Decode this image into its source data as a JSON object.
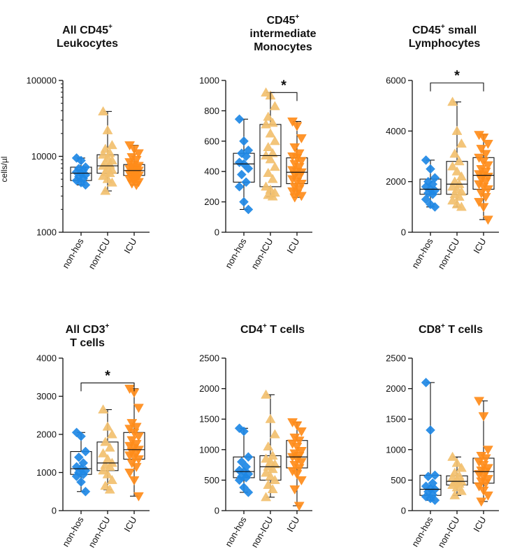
{
  "figure": {
    "y_label": "cells/µl"
  },
  "colors": {
    "nonhos": "#1E88E5",
    "nonicu": "#F2C06F",
    "icu": "#FF8C1A",
    "axis": "#111111"
  },
  "chart_data": [
    {
      "type": "box",
      "title": {
        "pre": "All CD45",
        "sup": "+",
        "post": "",
        "line2": "Leukocytes"
      },
      "scale": "log",
      "ylim": [
        1000,
        100000
      ],
      "yticks": [
        1000,
        10000,
        100000
      ],
      "ytick_labels": [
        "1000",
        "10000",
        "100000"
      ],
      "show_ylabel": true,
      "categories": [
        "non-hos",
        "non-ICU",
        "ICU"
      ],
      "groups": [
        {
          "name": "non-hos",
          "marker": "diamond",
          "q1": 4800,
          "median": 6000,
          "q3": 7200,
          "min": 4200,
          "max": 9500,
          "points": [
            9500,
            8800,
            7200,
            6900,
            6600,
            6200,
            6000,
            5700,
            5400,
            5100,
            4800,
            4500,
            4200
          ]
        },
        {
          "name": "non-ICU",
          "marker": "triangle-up",
          "q1": 6000,
          "median": 7500,
          "q3": 10500,
          "min": 3500,
          "max": 39000,
          "points": [
            39000,
            22000,
            14000,
            12500,
            11000,
            10500,
            9500,
            8800,
            8200,
            7800,
            7500,
            7000,
            6600,
            6200,
            6000,
            5500,
            5000,
            4500,
            3500
          ]
        },
        {
          "name": "ICU",
          "marker": "triangle-down",
          "q1": 5600,
          "median": 6500,
          "q3": 7800,
          "min": 4200,
          "max": 14000,
          "points": [
            14000,
            12500,
            11000,
            9800,
            9000,
            8400,
            7800,
            7500,
            7200,
            7000,
            6800,
            6600,
            6500,
            6300,
            6100,
            5900,
            5700,
            5600,
            5400,
            5200,
            5000,
            4800,
            4600,
            4400,
            4200
          ]
        }
      ],
      "significance": null
    },
    {
      "type": "box",
      "title": {
        "pre": "CD45",
        "sup": "+",
        "post": "",
        "line2": "intermediate",
        "line3": "Monocytes"
      },
      "scale": "linear",
      "ylim": [
        0,
        1000
      ],
      "yticks": [
        0,
        200,
        400,
        600,
        800,
        1000
      ],
      "ytick_labels": [
        "0",
        "200",
        "400",
        "600",
        "800",
        "1000"
      ],
      "show_ylabel": false,
      "categories": [
        "non-hos",
        "non-ICU",
        "ICU"
      ],
      "groups": [
        {
          "name": "non-hos",
          "marker": "diamond",
          "q1": 330,
          "median": 450,
          "q3": 520,
          "min": 150,
          "max": 745,
          "points": [
            745,
            600,
            540,
            520,
            500,
            460,
            450,
            420,
            380,
            330,
            300,
            200,
            150
          ]
        },
        {
          "name": "non-ICU",
          "marker": "triangle-up",
          "q1": 300,
          "median": 505,
          "q3": 710,
          "min": 235,
          "max": 920,
          "points": [
            920,
            900,
            830,
            760,
            720,
            710,
            650,
            600,
            560,
            520,
            505,
            480,
            430,
            390,
            350,
            300,
            280,
            260,
            245,
            235
          ]
        },
        {
          "name": "ICU",
          "marker": "triangle-down",
          "q1": 320,
          "median": 395,
          "q3": 490,
          "min": 230,
          "max": 730,
          "points": [
            730,
            700,
            620,
            560,
            520,
            500,
            490,
            470,
            450,
            430,
            410,
            400,
            395,
            380,
            365,
            350,
            335,
            320,
            300,
            285,
            270,
            255,
            240,
            230
          ]
        }
      ],
      "significance": {
        "from": 1,
        "to": 2,
        "level": 920,
        "label": "*"
      }
    },
    {
      "type": "box",
      "title": {
        "pre": "CD45",
        "sup": "+",
        "post": " small",
        "line2": "Lymphocytes"
      },
      "scale": "linear",
      "ylim": [
        0,
        6000
      ],
      "yticks": [
        0,
        2000,
        4000,
        6000
      ],
      "ytick_labels": [
        "0",
        "2000",
        "4000",
        "6000"
      ],
      "show_ylabel": false,
      "categories": [
        "non-hos",
        "non-ICU",
        "ICU"
      ],
      "groups": [
        {
          "name": "non-hos",
          "marker": "diamond",
          "q1": 1500,
          "median": 1700,
          "q3": 2100,
          "min": 1000,
          "max": 2850,
          "points": [
            2850,
            2500,
            2150,
            2000,
            1900,
            1800,
            1700,
            1650,
            1550,
            1500,
            1300,
            1100,
            1000
          ]
        },
        {
          "name": "non-ICU",
          "marker": "triangle-up",
          "q1": 1500,
          "median": 1900,
          "q3": 2800,
          "min": 1000,
          "max": 5150,
          "points": [
            5150,
            4000,
            3500,
            3100,
            2800,
            2600,
            2400,
            2200,
            2000,
            1900,
            1800,
            1700,
            1600,
            1500,
            1400,
            1250,
            1100,
            1000
          ]
        },
        {
          "name": "ICU",
          "marker": "triangle-down",
          "q1": 1700,
          "median": 2250,
          "q3": 2950,
          "min": 500,
          "max": 3850,
          "points": [
            3850,
            3750,
            3500,
            3300,
            3100,
            2950,
            2800,
            2650,
            2500,
            2400,
            2300,
            2250,
            2200,
            2100,
            2000,
            1900,
            1800,
            1700,
            1550,
            1400,
            1200,
            1000,
            500
          ]
        }
      ],
      "significance": {
        "from": 0,
        "to": 2,
        "level": 5900,
        "label": "*"
      }
    },
    {
      "type": "box",
      "title": {
        "pre": "All CD3",
        "sup": "+",
        "post": "",
        "line2": "T cells"
      },
      "scale": "linear",
      "ylim": [
        0,
        4000
      ],
      "yticks": [
        0,
        1000,
        2000,
        3000,
        4000
      ],
      "ytick_labels": [
        "0",
        "1000",
        "2000",
        "3000",
        "4000"
      ],
      "show_ylabel": false,
      "categories": [
        "non-hos",
        "non-ICU",
        "ICU"
      ],
      "groups": [
        {
          "name": "non-hos",
          "marker": "diamond",
          "q1": 950,
          "median": 1100,
          "q3": 1550,
          "min": 500,
          "max": 2050,
          "points": [
            2050,
            1950,
            1550,
            1400,
            1250,
            1150,
            1100,
            1050,
            1000,
            950,
            900,
            750,
            500
          ]
        },
        {
          "name": "non-ICU",
          "marker": "triangle-up",
          "q1": 1050,
          "median": 1250,
          "q3": 1800,
          "min": 550,
          "max": 2650,
          "points": [
            2650,
            2200,
            2000,
            1800,
            1650,
            1500,
            1350,
            1250,
            1200,
            1150,
            1050,
            950,
            800,
            650,
            550
          ]
        },
        {
          "name": "ICU",
          "marker": "triangle-down",
          "q1": 1350,
          "median": 1600,
          "q3": 2050,
          "min": 380,
          "max": 3200,
          "points": [
            3200,
            3100,
            2700,
            2300,
            2200,
            2150,
            2050,
            1950,
            1850,
            1750,
            1700,
            1650,
            1600,
            1550,
            1500,
            1450,
            1400,
            1350,
            1250,
            1150,
            1000,
            800,
            380
          ]
        }
      ],
      "significance": {
        "from": 0,
        "to": 2,
        "level": 3350,
        "label": "*"
      }
    },
    {
      "type": "box",
      "title": {
        "pre": "CD4",
        "sup": "+",
        "post": " T cells"
      },
      "scale": "linear",
      "ylim": [
        0,
        2500
      ],
      "yticks": [
        0,
        500,
        1000,
        1500,
        2000,
        2500
      ],
      "ytick_labels": [
        "0",
        "500",
        "1000",
        "1500",
        "2000",
        "2500"
      ],
      "show_ylabel": false,
      "categories": [
        "non-hos",
        "non-ICU",
        "ICU"
      ],
      "groups": [
        {
          "name": "non-hos",
          "marker": "diamond",
          "q1": 540,
          "median": 640,
          "q3": 880,
          "min": 300,
          "max": 1350,
          "points": [
            1350,
            1300,
            880,
            800,
            720,
            660,
            640,
            600,
            560,
            540,
            500,
            380,
            300
          ]
        },
        {
          "name": "non-ICU",
          "marker": "triangle-up",
          "q1": 500,
          "median": 720,
          "q3": 900,
          "min": 220,
          "max": 1900,
          "points": [
            1900,
            1500,
            1250,
            1050,
            900,
            850,
            800,
            760,
            720,
            680,
            620,
            560,
            500,
            420,
            350,
            220
          ]
        },
        {
          "name": "ICU",
          "marker": "triangle-down",
          "q1": 700,
          "median": 880,
          "q3": 1150,
          "min": 80,
          "max": 1450,
          "points": [
            1450,
            1400,
            1300,
            1200,
            1150,
            1100,
            1050,
            980,
            940,
            900,
            880,
            850,
            800,
            750,
            700,
            650,
            600,
            500,
            350,
            80
          ]
        }
      ],
      "significance": null
    },
    {
      "type": "box",
      "title": {
        "pre": "CD8",
        "sup": "+",
        "post": " T cells"
      },
      "scale": "linear",
      "ylim": [
        0,
        2500
      ],
      "yticks": [
        0,
        500,
        1000,
        1500,
        2000,
        2500
      ],
      "ytick_labels": [
        "0",
        "500",
        "1000",
        "1500",
        "2000",
        "2500"
      ],
      "show_ylabel": false,
      "categories": [
        "non-hos",
        "non-ICU",
        "ICU"
      ],
      "groups": [
        {
          "name": "non-hos",
          "marker": "diamond",
          "q1": 250,
          "median": 350,
          "q3": 580,
          "min": 170,
          "max": 2100,
          "points": [
            2100,
            1320,
            580,
            560,
            450,
            400,
            360,
            350,
            310,
            260,
            230,
            200,
            170
          ]
        },
        {
          "name": "non-ICU",
          "marker": "triangle-up",
          "q1": 420,
          "median": 480,
          "q3": 570,
          "min": 250,
          "max": 880,
          "points": [
            880,
            780,
            700,
            620,
            570,
            540,
            500,
            480,
            460,
            440,
            420,
            380,
            320,
            250
          ]
        },
        {
          "name": "ICU",
          "marker": "triangle-down",
          "q1": 450,
          "median": 640,
          "q3": 860,
          "min": 150,
          "max": 1800,
          "points": [
            1800,
            1550,
            1000,
            900,
            860,
            800,
            750,
            700,
            660,
            640,
            600,
            560,
            520,
            480,
            450,
            400,
            330,
            250,
            150
          ]
        }
      ],
      "significance": null
    }
  ]
}
